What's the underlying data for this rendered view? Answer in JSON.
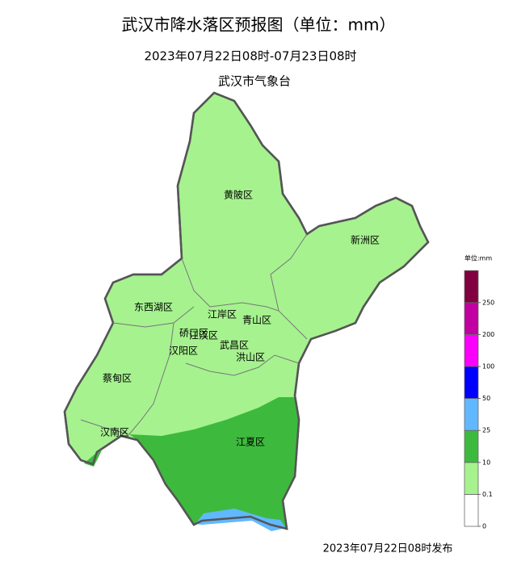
{
  "header": {
    "title": "武汉市降水落区预报图（单位：mm）",
    "subtitle": "2023年07月22日08时-07月23日08时",
    "issuer": "武汉市气象台"
  },
  "map": {
    "districts": [
      {
        "label": "黄陂区"
      },
      {
        "label": "新洲区"
      },
      {
        "label": "东西湖区"
      },
      {
        "label": "江岸区"
      },
      {
        "label": "青山区"
      },
      {
        "label": "硚口区"
      },
      {
        "label": "江汉区"
      },
      {
        "label": "汉阳区"
      },
      {
        "label": "武昌区"
      },
      {
        "label": "洪山区"
      },
      {
        "label": "蔡甸区"
      },
      {
        "label": "汉南区"
      },
      {
        "label": "江夏区"
      }
    ]
  },
  "legend": {
    "unit": "单位:mm",
    "ticks": [
      0,
      0.1,
      10,
      25,
      50,
      100,
      200,
      250
    ],
    "colors": [
      "#ffffff",
      "#a6f28f",
      "#3dba3d",
      "#61b8ff",
      "#0000ff",
      "#fa00fa",
      "#c000a0",
      "#800040"
    ]
  },
  "footer": "2023年07月22日08时发布"
}
